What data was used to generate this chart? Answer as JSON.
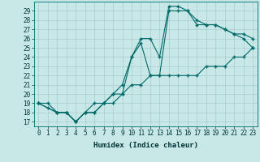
{
  "title": "",
  "xlabel": "Humidex (Indice chaleur)",
  "bg_color": "#c8e8e8",
  "grid_color": "#a8cccc",
  "line_color": "#006868",
  "xlim": [
    -0.5,
    23.5
  ],
  "ylim": [
    16.5,
    30.0
  ],
  "xticks": [
    0,
    1,
    2,
    3,
    4,
    5,
    6,
    7,
    8,
    9,
    10,
    11,
    12,
    13,
    14,
    15,
    16,
    17,
    18,
    19,
    20,
    21,
    22,
    23
  ],
  "yticks": [
    17,
    18,
    19,
    20,
    21,
    22,
    23,
    24,
    25,
    26,
    27,
    28,
    29
  ],
  "series1_x": [
    0,
    1,
    2,
    3,
    4,
    5,
    6,
    7,
    8,
    9,
    10,
    11,
    12,
    13,
    14,
    15,
    16,
    17,
    18,
    19,
    20,
    21,
    22,
    23
  ],
  "series1_y": [
    19,
    19,
    18,
    18,
    17,
    18,
    18,
    19,
    19,
    20,
    21,
    21,
    22,
    22,
    22,
    22,
    22,
    22,
    23,
    23,
    23,
    24,
    24,
    25
  ],
  "series2_x": [
    0,
    2,
    3,
    4,
    5,
    6,
    7,
    8,
    9,
    10,
    11,
    12,
    13,
    14,
    15,
    16,
    17,
    18,
    19,
    20,
    21,
    22,
    23
  ],
  "series2_y": [
    19,
    18,
    18,
    17,
    18,
    18,
    19,
    20,
    20,
    24,
    26,
    26,
    24,
    29.5,
    29.5,
    29,
    28,
    27.5,
    27.5,
    27,
    26.5,
    26,
    25
  ],
  "series3_x": [
    0,
    1,
    2,
    3,
    4,
    5,
    6,
    7,
    8,
    9,
    10,
    11,
    12,
    13,
    14,
    15,
    16,
    17,
    18,
    19,
    20,
    21,
    22,
    23
  ],
  "series3_y": [
    19,
    18.5,
    18,
    18,
    17,
    18,
    19,
    19,
    20,
    21,
    24,
    25.5,
    22,
    22,
    29,
    29,
    29,
    27.5,
    27.5,
    27.5,
    27,
    26.5,
    26.5,
    26
  ]
}
